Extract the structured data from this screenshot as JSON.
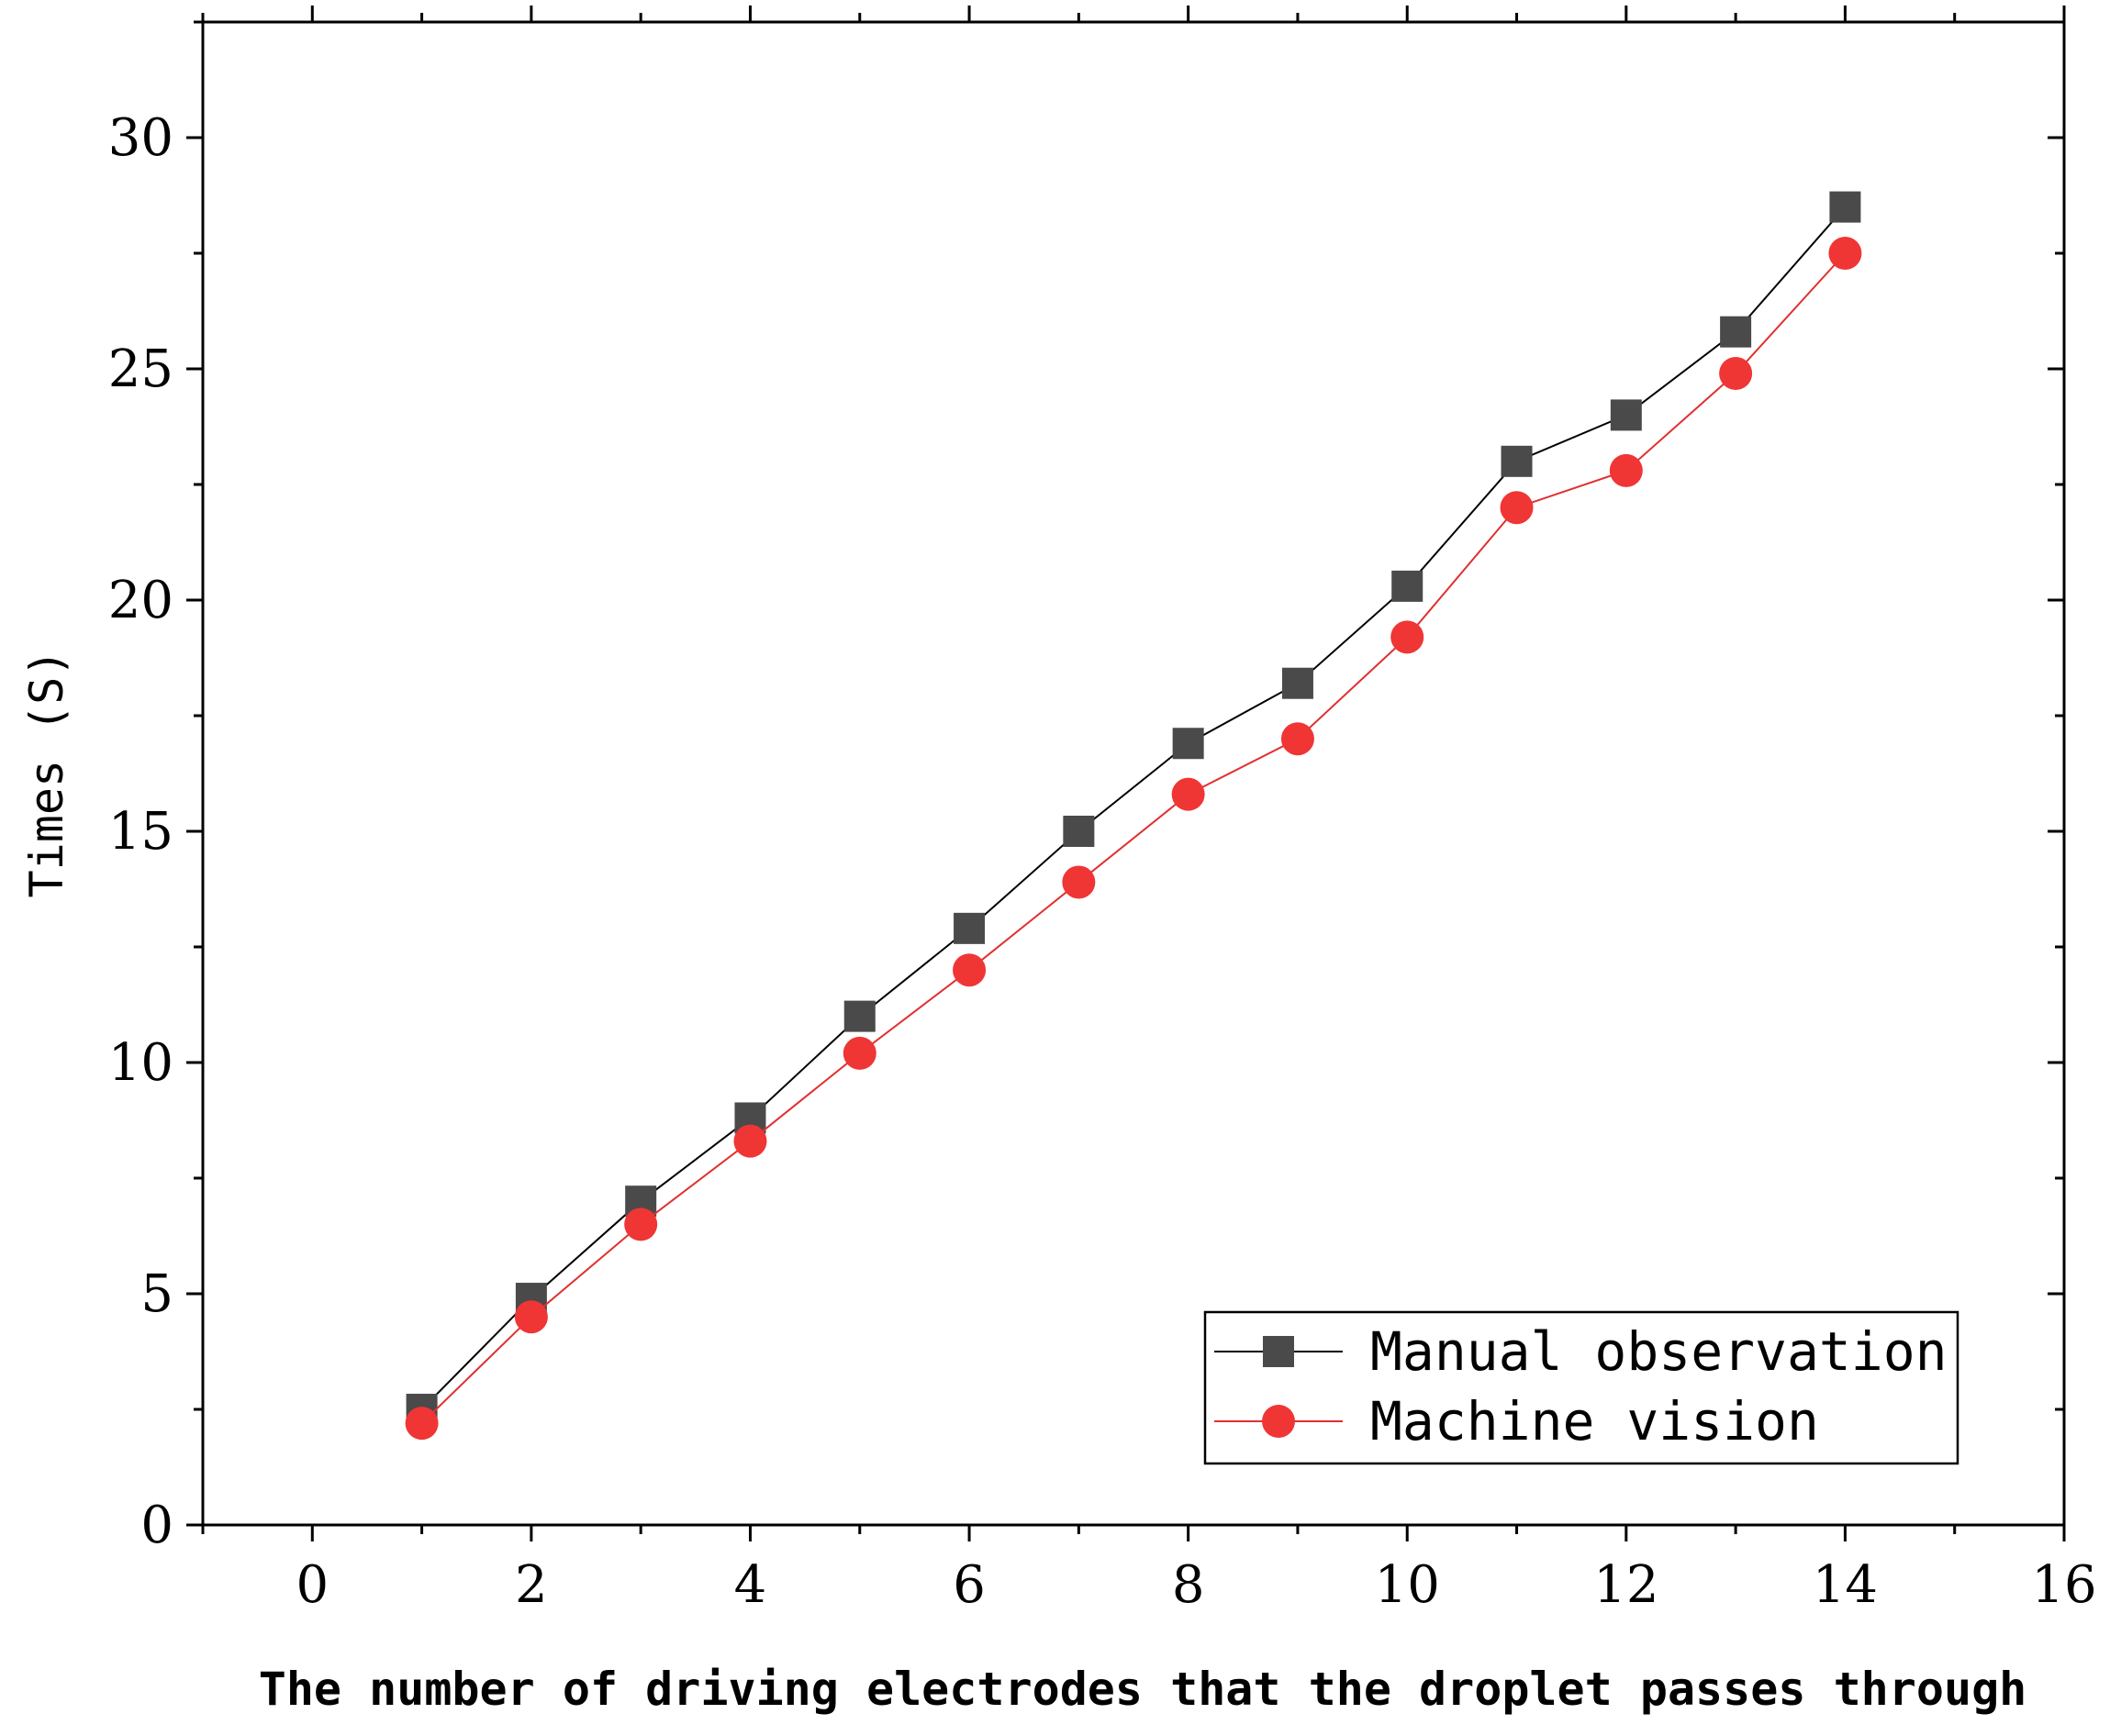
{
  "chart_data": {
    "type": "line",
    "title": "",
    "xlabel": "The number of driving electrodes that the droplet passes through",
    "ylabel": "Times (S)",
    "xlim": [
      -1,
      16
    ],
    "ylim": [
      0,
      32.5
    ],
    "x_ticks": [
      0,
      2,
      4,
      6,
      8,
      10,
      12,
      14,
      16
    ],
    "x_tick_labels": [
      "0",
      "2",
      "4",
      "6",
      "8",
      "10",
      "12",
      "14",
      "16"
    ],
    "y_ticks": [
      0,
      5,
      10,
      15,
      20,
      25,
      30
    ],
    "y_tick_labels": [
      "0",
      "5",
      "10",
      "15",
      "20",
      "25",
      "30"
    ],
    "grid": false,
    "legend_position": "bottom-right",
    "x": [
      1,
      2,
      3,
      4,
      5,
      6,
      7,
      8,
      9,
      10,
      11,
      12,
      13,
      14
    ],
    "series": [
      {
        "name": "Manual observation",
        "marker": "square",
        "color": "#4a4a4a",
        "line_color": "#000000",
        "values": [
          2.5,
          4.9,
          7.0,
          8.8,
          11.0,
          12.9,
          15.0,
          16.9,
          18.2,
          20.3,
          23.0,
          24.0,
          25.8,
          28.5
        ]
      },
      {
        "name": "Machine vision",
        "marker": "circle",
        "color": "#f03535",
        "line_color": "#e03030",
        "values": [
          2.2,
          4.5,
          6.5,
          8.3,
          10.2,
          12.0,
          13.9,
          15.8,
          17.0,
          19.2,
          22.0,
          22.8,
          24.9,
          27.5
        ]
      }
    ]
  }
}
